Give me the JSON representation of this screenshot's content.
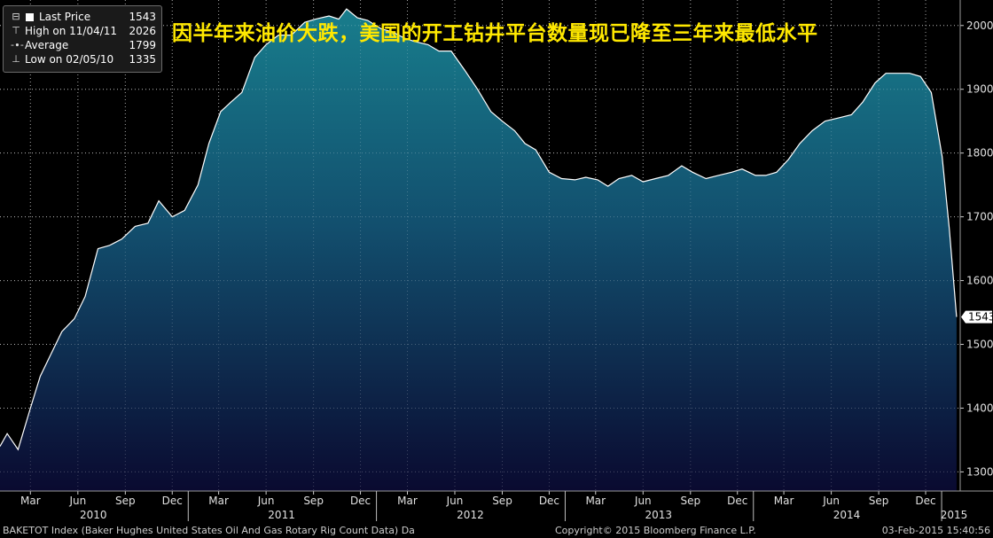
{
  "headline": "因半年来油价大跌，美国的开工钻井平台数量现已降至三年来最低水平",
  "legend": {
    "last_price_label": "Last Price",
    "last_price_value": "1543",
    "high_label": "High on 11/04/11",
    "high_value": "2026",
    "average_label": "Average",
    "average_value": "1799",
    "low_label": "Low on 02/05/10",
    "low_value": "1335"
  },
  "footer": {
    "left": "BAKETOT Index (Baker Hughes United States Oil And Gas Rotary Rig Count Data)  Da",
    "center": "Copyright© 2015 Bloomberg Finance L.P.",
    "right": "03-Feb-2015 15:40:56"
  },
  "colors": {
    "headline": "#ffe800",
    "area_top": "#187d8c",
    "area_bottom": "#0a0a30",
    "line": "#ffffff"
  },
  "chart_data": {
    "type": "area",
    "title": "",
    "xlabel": "",
    "ylabel": "",
    "ylim": [
      1270,
      2040
    ],
    "xlim": [
      "2010-01-01",
      "2015-02-06"
    ],
    "y_ticks": [
      1300,
      1400,
      1500,
      1600,
      1700,
      1800,
      1900,
      2000
    ],
    "grid": true,
    "legend_position": "top-left",
    "x_month_ticks": [
      {
        "label": "Mar",
        "date": "2010-03-01"
      },
      {
        "label": "Jun",
        "date": "2010-06-01"
      },
      {
        "label": "Sep",
        "date": "2010-09-01"
      },
      {
        "label": "Dec",
        "date": "2010-12-01"
      },
      {
        "label": "Mar",
        "date": "2011-03-01"
      },
      {
        "label": "Jun",
        "date": "2011-06-01"
      },
      {
        "label": "Sep",
        "date": "2011-09-01"
      },
      {
        "label": "Dec",
        "date": "2011-12-01"
      },
      {
        "label": "Mar",
        "date": "2012-03-01"
      },
      {
        "label": "Jun",
        "date": "2012-06-01"
      },
      {
        "label": "Sep",
        "date": "2012-09-01"
      },
      {
        "label": "Dec",
        "date": "2012-12-01"
      },
      {
        "label": "Mar",
        "date": "2013-03-01"
      },
      {
        "label": "Jun",
        "date": "2013-06-01"
      },
      {
        "label": "Sep",
        "date": "2013-09-01"
      },
      {
        "label": "Dec",
        "date": "2013-12-01"
      },
      {
        "label": "Mar",
        "date": "2014-03-01"
      },
      {
        "label": "Jun",
        "date": "2014-06-01"
      },
      {
        "label": "Sep",
        "date": "2014-09-01"
      },
      {
        "label": "Dec",
        "date": "2014-12-01"
      }
    ],
    "x_year_ticks": [
      {
        "label": "2010",
        "date": "2010-07-01"
      },
      {
        "label": "2011",
        "date": "2011-07-01"
      },
      {
        "label": "2012",
        "date": "2012-07-01"
      },
      {
        "label": "2013",
        "date": "2013-07-01"
      },
      {
        "label": "2014",
        "date": "2014-07-01"
      },
      {
        "label": "2015",
        "date": "2015-01-25"
      }
    ],
    "year_boundaries": [
      "2011-01-01",
      "2012-01-01",
      "2013-01-01",
      "2014-01-01",
      "2015-01-01"
    ],
    "last_value_label": "1543",
    "series": [
      {
        "x": [
          "2010-01-01",
          "2010-01-15",
          "2010-02-05",
          "2010-03-01",
          "2010-03-20",
          "2010-04-10",
          "2010-05-01",
          "2010-05-25",
          "2010-06-15",
          "2010-07-10",
          "2010-08-01",
          "2010-08-25",
          "2010-09-20",
          "2010-10-15",
          "2010-11-05",
          "2010-12-01",
          "2010-12-25",
          "2011-01-20",
          "2011-02-10",
          "2011-03-05",
          "2011-03-25",
          "2011-04-15",
          "2011-05-10",
          "2011-06-01",
          "2011-06-25",
          "2011-07-20",
          "2011-08-15",
          "2011-09-05",
          "2011-10-01",
          "2011-10-20",
          "2011-11-04",
          "2011-11-25",
          "2011-12-15",
          "2012-01-10",
          "2012-02-01",
          "2012-02-25",
          "2012-03-15",
          "2012-04-10",
          "2012-05-01",
          "2012-05-25",
          "2012-06-20",
          "2012-07-15",
          "2012-08-10",
          "2012-09-01",
          "2012-09-25",
          "2012-10-15",
          "2012-11-05",
          "2012-12-01",
          "2012-12-25",
          "2013-01-20",
          "2013-02-10",
          "2013-03-05",
          "2013-03-25",
          "2013-04-15",
          "2013-05-10",
          "2013-06-01",
          "2013-06-25",
          "2013-07-20",
          "2013-08-15",
          "2013-09-05",
          "2013-10-01",
          "2013-10-25",
          "2013-11-20",
          "2013-12-10",
          "2014-01-05",
          "2014-01-25",
          "2014-02-15",
          "2014-03-10",
          "2014-04-01",
          "2014-04-25",
          "2014-05-20",
          "2014-06-15",
          "2014-07-10",
          "2014-08-01",
          "2014-08-25",
          "2014-09-15",
          "2014-10-10",
          "2014-10-31",
          "2014-11-21",
          "2014-12-12",
          "2015-01-02",
          "2015-01-16",
          "2015-01-30"
        ],
        "values": [
          1340,
          1360,
          1335,
          1400,
          1450,
          1485,
          1520,
          1540,
          1575,
          1650,
          1655,
          1665,
          1685,
          1690,
          1725,
          1700,
          1710,
          1750,
          1815,
          1865,
          1880,
          1895,
          1950,
          1970,
          1985,
          1985,
          2005,
          2010,
          2015,
          2010,
          2026,
          2012,
          2008,
          1995,
          1990,
          1980,
          1975,
          1970,
          1960,
          1960,
          1930,
          1900,
          1865,
          1850,
          1835,
          1815,
          1805,
          1770,
          1760,
          1758,
          1762,
          1758,
          1748,
          1760,
          1765,
          1755,
          1760,
          1765,
          1780,
          1770,
          1760,
          1765,
          1770,
          1775,
          1765,
          1765,
          1770,
          1790,
          1815,
          1835,
          1850,
          1855,
          1860,
          1880,
          1910,
          1925,
          1925,
          1925,
          1920,
          1895,
          1795,
          1680,
          1543
        ]
      }
    ]
  }
}
